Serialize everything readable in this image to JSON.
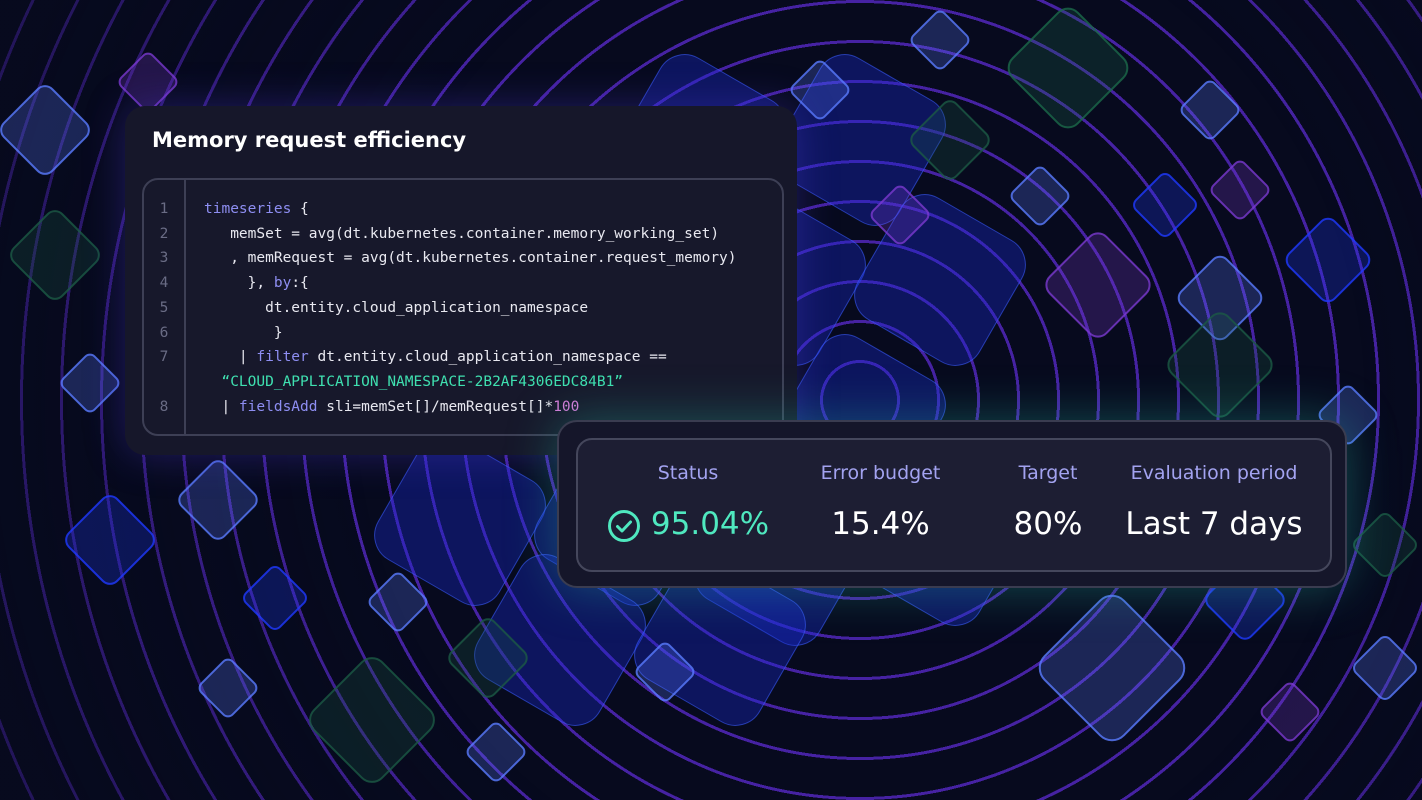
{
  "colors": {
    "background": "#070a1e",
    "rings": "#5b2bd0",
    "accent_green": "#4fe8bf",
    "label": "#a3a3f0",
    "keyword": "#8e8ef2",
    "string": "#3fe0b0",
    "number": "#d57ad8"
  },
  "query_card": {
    "title": "Memory request efficiency",
    "lines": [
      {
        "number": "1",
        "tokens": [
          {
            "t": "timeseries",
            "c": "kw"
          },
          {
            "t": " {",
            "c": ""
          }
        ]
      },
      {
        "number": "2",
        "tokens": [
          {
            "t": "   memSet = avg(dt.kubernetes.container.memory_working_set)",
            "c": ""
          }
        ]
      },
      {
        "number": "3",
        "tokens": [
          {
            "t": "   , memRequest = avg(dt.kubernetes.container.request_memory)",
            "c": ""
          }
        ]
      },
      {
        "number": "4",
        "tokens": [
          {
            "t": "     }, ",
            "c": ""
          },
          {
            "t": "by",
            "c": "kw"
          },
          {
            "t": ":{",
            "c": ""
          }
        ]
      },
      {
        "number": "5",
        "tokens": [
          {
            "t": "       dt.entity.cloud_application_namespace",
            "c": ""
          }
        ]
      },
      {
        "number": "6",
        "tokens": [
          {
            "t": "        }",
            "c": ""
          }
        ]
      },
      {
        "number": "7",
        "tokens": [
          {
            "t": "    | ",
            "c": ""
          },
          {
            "t": "filter",
            "c": "kw"
          },
          {
            "t": " dt.entity.cloud_application_namespace ==",
            "c": ""
          }
        ]
      },
      {
        "number": "",
        "tokens": [
          {
            "t": "  “CLOUD_APPLICATION_NAMESPACE-2B2AF4306EDC84B1”",
            "c": "str"
          }
        ]
      },
      {
        "number": "8",
        "tokens": [
          {
            "t": "  | ",
            "c": ""
          },
          {
            "t": "fieldsAdd",
            "c": "kw"
          },
          {
            "t": " sli=memSet[]/memRequest[]*",
            "c": ""
          },
          {
            "t": "100",
            "c": "num"
          }
        ]
      }
    ]
  },
  "slo_card": {
    "status": {
      "label": "Status",
      "value": "95.04%",
      "icon": "check-circle-icon"
    },
    "error_budget": {
      "label": "Error budget",
      "value": "15.4%"
    },
    "target": {
      "label": "Target",
      "value": "80%"
    },
    "evaluation_period": {
      "label": "Evaluation period",
      "value": "Last 7 days"
    }
  }
}
